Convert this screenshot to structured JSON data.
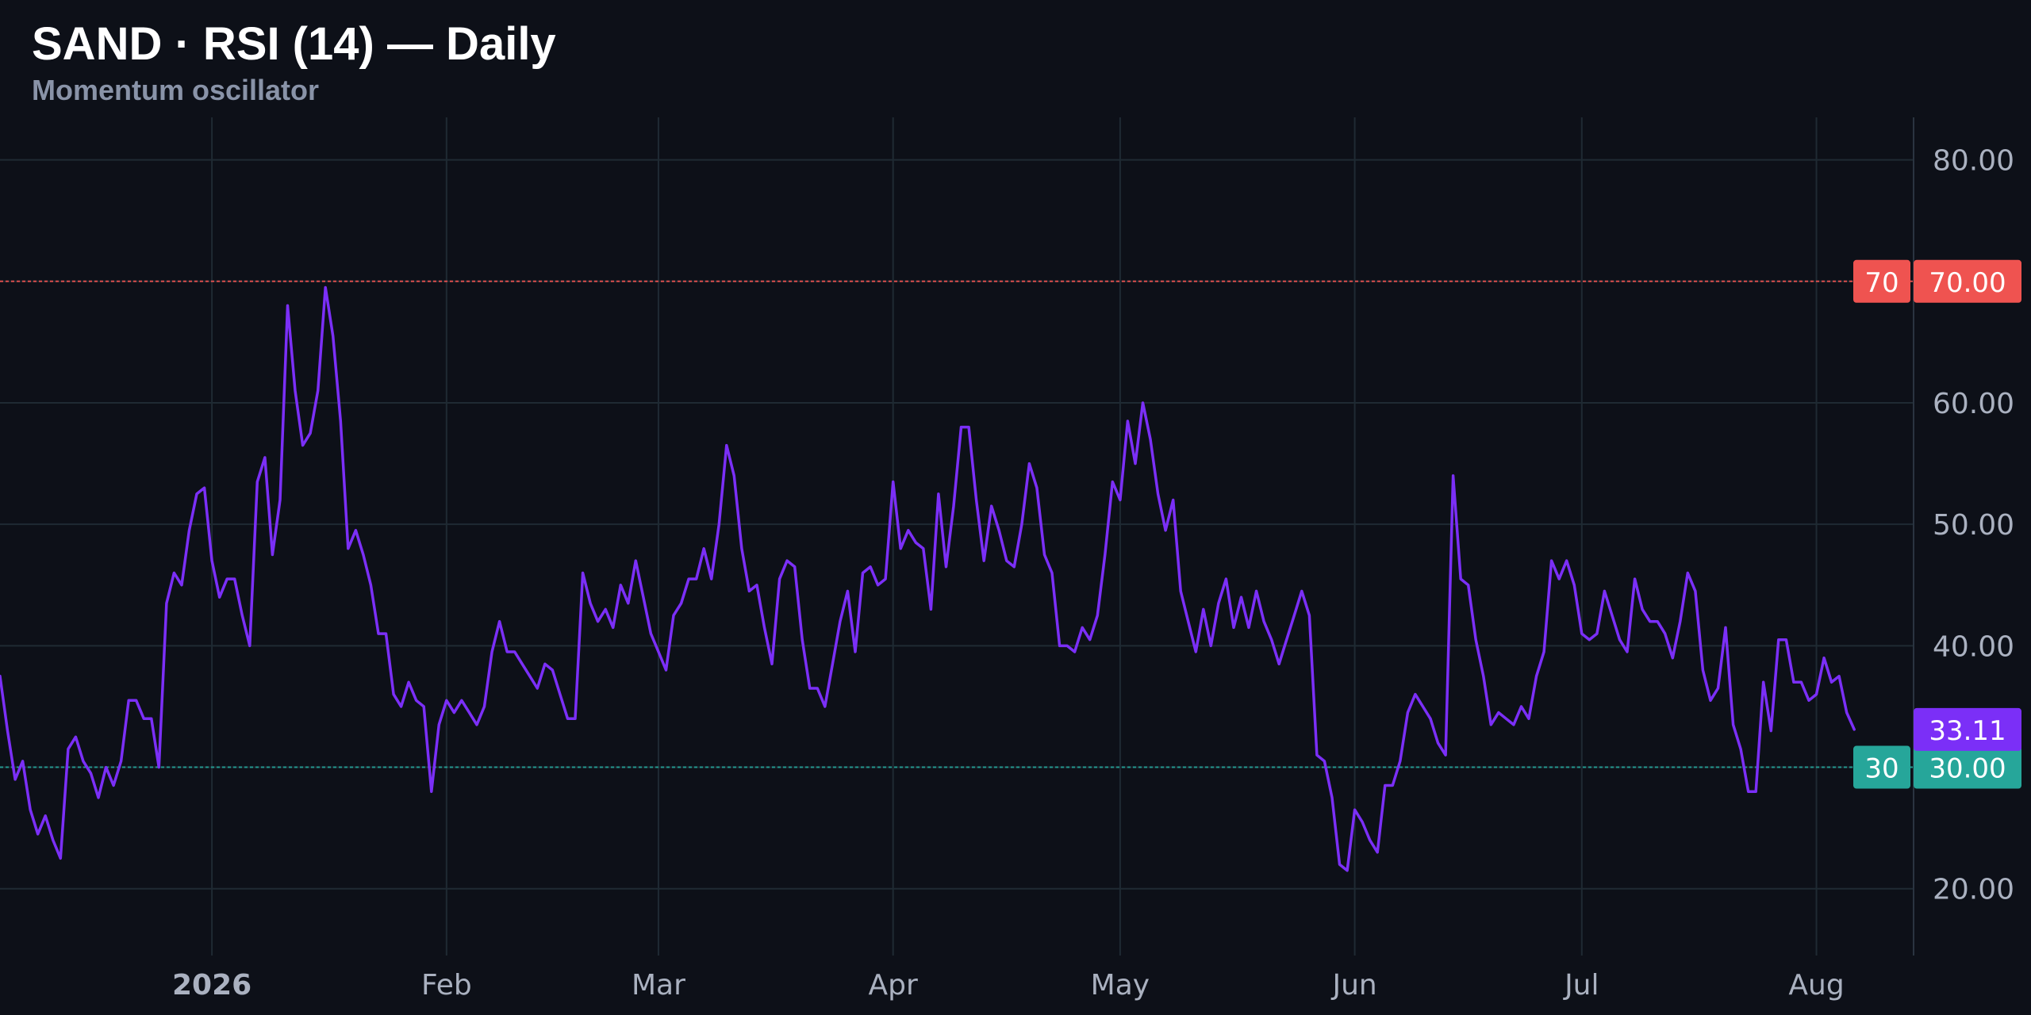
{
  "title": "SAND · RSI (14) — Daily",
  "subtitle": "Momentum oscillator",
  "colors": {
    "background": "#0d1018",
    "grid": "#1f2a33",
    "rsi_line": "#7b2ff7",
    "overbought": "#ef5350",
    "oversold": "#26a69a",
    "tick_text": "#aab1c0"
  },
  "chart_data": {
    "type": "line",
    "x_start": "2025-12-04",
    "x_end": "2026-08-13",
    "ylim": [
      14.5,
      83.5
    ],
    "y_ticks": [
      {
        "value": 20,
        "label": "20.00"
      },
      {
        "value": 30,
        "label": "30.00"
      },
      {
        "value": 40,
        "label": "40.00"
      },
      {
        "value": 50,
        "label": "50.00"
      },
      {
        "value": 60,
        "label": "60.00"
      },
      {
        "value": 70,
        "label": "70.00"
      },
      {
        "value": 80,
        "label": "80.00"
      }
    ],
    "x_ticks": [
      {
        "date": "2026-01-01",
        "label": "2026",
        "bold": true
      },
      {
        "date": "2026-02-01",
        "label": "Feb"
      },
      {
        "date": "2026-03-01",
        "label": "Mar"
      },
      {
        "date": "2026-04-01",
        "label": "Apr"
      },
      {
        "date": "2026-05-01",
        "label": "May"
      },
      {
        "date": "2026-06-01",
        "label": "Jun"
      },
      {
        "date": "2026-07-01",
        "label": "Jul"
      },
      {
        "date": "2026-08-01",
        "label": "Aug"
      }
    ],
    "levels": [
      {
        "value": 70,
        "label": "70",
        "value_label": "70.00",
        "color": "#ef5350"
      },
      {
        "value": 30,
        "label": "30",
        "value_label": "30.00",
        "color": "#26a69a"
      }
    ],
    "last_value_label": "33.11",
    "series": [
      {
        "color": "#7b2ff7",
        "values": [
          37.5,
          33,
          29,
          30.5,
          26.5,
          24.5,
          26,
          24,
          22.5,
          31.5,
          32.5,
          30.5,
          29.5,
          27.5,
          30,
          28.5,
          30.5,
          35.5,
          35.5,
          34,
          34,
          30,
          43.5,
          46,
          45,
          49.5,
          52.5,
          53,
          47,
          44,
          45.5,
          45.5,
          42.5,
          40,
          53.5,
          55.5,
          47.5,
          52,
          68,
          61,
          56.5,
          57.5,
          61,
          69.5,
          65.5,
          58.5,
          48,
          49.5,
          47.5,
          45,
          41,
          41,
          36,
          35,
          37,
          35.5,
          35,
          28,
          33.5,
          35.5,
          34.5,
          35.5,
          34.5,
          33.5,
          35,
          39.5,
          42,
          39.5,
          39.5,
          38.5,
          37.5,
          36.5,
          38.5,
          38,
          36,
          34,
          34,
          46,
          43.5,
          42,
          43,
          41.5,
          45,
          43.5,
          47,
          44,
          41,
          39.5,
          38,
          42.5,
          43.5,
          45.5,
          45.5,
          48,
          45.5,
          50,
          56.5,
          54,
          48,
          44.5,
          45,
          41.5,
          38.5,
          45.5,
          47,
          46.5,
          40.5,
          36.5,
          36.5,
          35,
          38.5,
          42,
          44.5,
          39.5,
          46,
          46.5,
          45,
          45.5,
          53.5,
          48,
          49.5,
          48.5,
          48,
          43,
          52.5,
          46.5,
          51.5,
          58,
          58,
          52,
          47,
          51.5,
          49.5,
          47,
          46.5,
          50,
          55,
          53,
          47.5,
          46,
          40,
          40,
          39.5,
          41.5,
          40.5,
          42.5,
          47.5,
          53.5,
          52,
          58.5,
          55,
          60,
          57,
          52.5,
          49.5,
          52,
          44.5,
          42,
          39.5,
          43,
          40,
          43.5,
          45.5,
          41.5,
          44,
          41.5,
          44.5,
          42,
          40.5,
          38.5,
          40.5,
          42.5,
          44.5,
          42.5,
          31,
          30.5,
          27.5,
          22,
          21.5,
          26.5,
          25.5,
          24,
          23,
          28.5,
          28.5,
          30.5,
          34.5,
          36,
          35,
          34,
          32,
          31,
          54,
          45.5,
          45,
          40.5,
          37.5,
          33.5,
          34.5,
          34,
          33.5,
          35,
          34,
          37.5,
          39.5,
          47,
          45.5,
          47,
          45,
          41,
          40.5,
          41,
          44.5,
          42.5,
          40.5,
          39.5,
          45.5,
          43,
          42,
          42,
          41,
          39,
          42,
          46,
          44.5,
          38,
          35.5,
          36.5,
          41.5,
          33.5,
          31.5,
          28,
          28,
          37,
          33,
          40.5,
          40.5,
          37,
          37,
          35.5,
          36,
          39,
          37,
          37.5,
          34.5,
          33.11
        ]
      }
    ]
  }
}
